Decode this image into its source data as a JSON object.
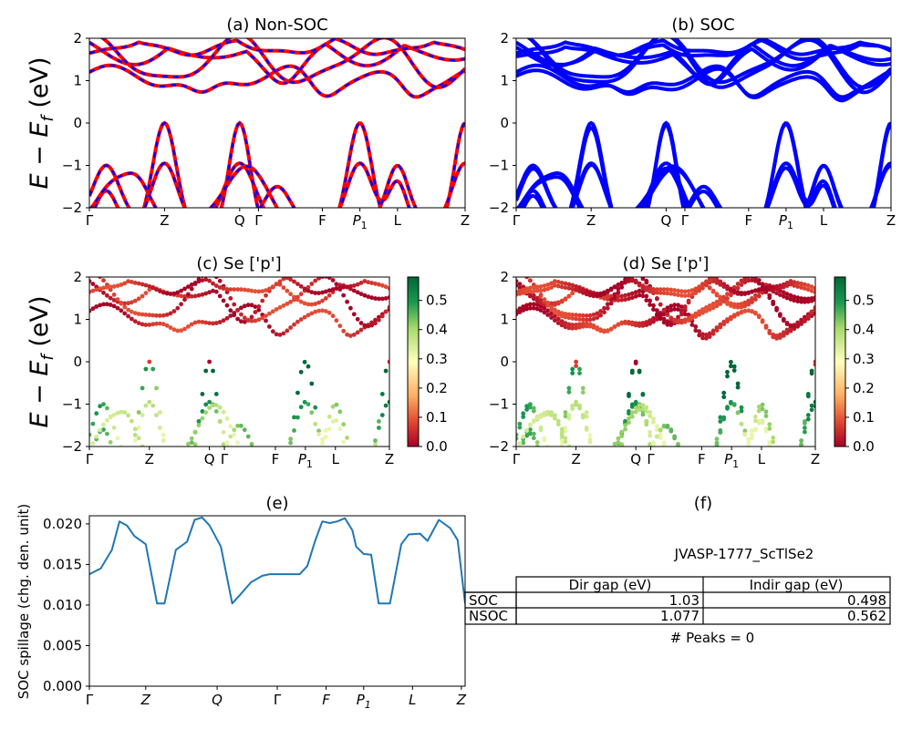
{
  "figure": {
    "panels": {
      "a": {
        "title": "(a) Non-SOC"
      },
      "b": {
        "title": "(b) SOC"
      },
      "c": {
        "title": "(c)  Se ['p']"
      },
      "d": {
        "title": "(d) Se ['p']"
      },
      "e": {
        "title": "(e)"
      },
      "f": {
        "title": "(f)"
      }
    },
    "ylabel_band": "E − E_f (eV)",
    "ylabel_band_parts": {
      "main": "E − E",
      "sub": "f",
      "unit": " (eV)"
    },
    "ylabel_spillage": "SOC spillage (chg. den. unit)",
    "kpath_labels": [
      "Γ",
      "Z",
      "Q",
      "Γ",
      "F",
      "P",
      "L",
      "Z"
    ],
    "kpath_label_p1": {
      "main": "P",
      "sub": "1"
    },
    "band_yticks": [
      "2",
      "1",
      "0",
      "−1",
      "−2"
    ],
    "colorbar_ticks": [
      "0.5",
      "0.4",
      "0.3",
      "0.2",
      "0.1",
      "0.0"
    ],
    "spillage_yticks": [
      "0.020",
      "0.015",
      "0.010",
      "0.005",
      "0.000"
    ],
    "colors": {
      "nsoc": "#ff0000",
      "soc": "#0000ff",
      "spillage": "#1f77b4",
      "cmap_low": "#a50026",
      "cmap_mid": "#ffffbf",
      "cmap_high": "#006837"
    }
  },
  "info": {
    "material": "JVASP-1777_ScTlSe2",
    "table": {
      "headers": [
        "Dir gap (eV)",
        "Indir gap (eV)"
      ],
      "rows": [
        {
          "label": "SOC",
          "dir": "1.03",
          "indir": "0.498"
        },
        {
          "label": "NSOC",
          "dir": "1.077",
          "indir": "0.562"
        }
      ]
    },
    "peaks": "# Peaks = 0"
  },
  "chart_data": [
    {
      "panel": "a",
      "type": "line",
      "title": "(a) Non-SOC",
      "ylabel": "E − E_f (eV)",
      "ylim": [
        -2,
        2
      ],
      "x_ticklabels": [
        "Γ",
        "Z",
        "Q",
        "Γ",
        "F",
        "P1",
        "L",
        "Z"
      ],
      "series": [
        {
          "name": "",
          "description": "non-SOC bands (red) overlaid by SOC bands (blue dashed)"
        }
      ],
      "gap": {
        "indirect_eV": 0.562,
        "direct_eV": 1.077
      }
    },
    {
      "panel": "b",
      "type": "line",
      "title": "(b) SOC",
      "ylim": [
        -2,
        2
      ],
      "x_ticklabels": [
        "Γ",
        "Z",
        "Q",
        "Γ",
        "F",
        "P1",
        "L",
        "Z"
      ],
      "gap": {
        "indirect_eV": 0.498,
        "direct_eV": 1.03
      }
    },
    {
      "panel": "c",
      "type": "scatter",
      "title": "(c)  Se ['p']",
      "ylim": [
        -2,
        2
      ],
      "colorbar": {
        "range": [
          0.0,
          0.58
        ]
      },
      "x_ticklabels": [
        "Γ",
        "Z",
        "Q",
        "Γ",
        "F",
        "P1",
        "L",
        "Z"
      ]
    },
    {
      "panel": "d",
      "type": "scatter",
      "title": "(d) Se ['p']",
      "ylim": [
        -2,
        2
      ],
      "colorbar": {
        "range": [
          0.0,
          0.58
        ]
      },
      "x_ticklabels": [
        "Γ",
        "Z",
        "Q",
        "Γ",
        "F",
        "P1",
        "L",
        "Z"
      ]
    },
    {
      "panel": "e",
      "type": "line",
      "title": "(e)",
      "ylabel": "SOC spillage (chg. den. unit)",
      "ylim": [
        0.0,
        0.021
      ],
      "x_ticklabels": [
        "Γ",
        "Z",
        "Q",
        "Γ",
        "F",
        "P1",
        "L",
        "Z"
      ],
      "x": [
        0,
        0.03,
        0.06,
        0.08,
        0.1,
        0.12,
        0.15,
        0.18,
        0.2,
        0.23,
        0.26,
        0.28,
        0.3,
        0.32,
        0.35,
        0.38,
        0.4,
        0.43,
        0.46,
        0.48,
        0.5,
        0.53,
        0.56,
        0.58,
        0.6,
        0.62,
        0.64,
        0.66,
        0.68,
        0.7,
        0.71,
        0.73,
        0.75,
        0.77,
        0.8,
        0.83,
        0.85,
        0.88,
        0.9,
        0.93,
        0.96,
        0.98,
        1.0
      ],
      "y": [
        0.0138,
        0.0145,
        0.0168,
        0.0203,
        0.0198,
        0.0185,
        0.0175,
        0.0102,
        0.0102,
        0.0168,
        0.0178,
        0.0205,
        0.0208,
        0.0198,
        0.0172,
        0.0102,
        0.0112,
        0.0128,
        0.0136,
        0.0138,
        0.0138,
        0.0138,
        0.0138,
        0.0148,
        0.0178,
        0.0203,
        0.0201,
        0.0203,
        0.0207,
        0.0192,
        0.0172,
        0.0163,
        0.0162,
        0.0102,
        0.0102,
        0.0175,
        0.0187,
        0.0188,
        0.0179,
        0.0205,
        0.0195,
        0.018,
        0.0102
      ]
    }
  ]
}
